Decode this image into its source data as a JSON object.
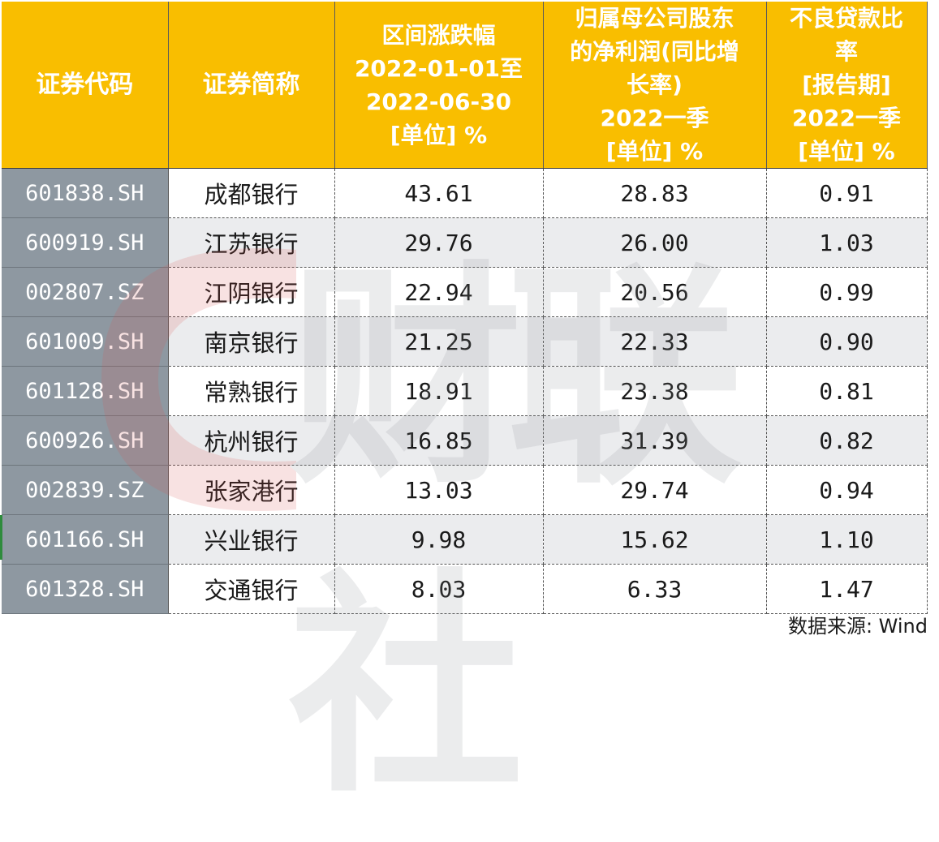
{
  "table": {
    "headers": [
      {
        "lines": [
          "证券代码"
        ]
      },
      {
        "lines": [
          "证券简称"
        ]
      },
      {
        "lines": [
          "区间涨跌幅",
          "2022-01-01至",
          "2022-06-30",
          "[单位] %"
        ]
      },
      {
        "lines": [
          "归属母公司股东",
          "的净利润(同比增",
          "长率)",
          "2022一季",
          "[单位] %"
        ]
      },
      {
        "lines": [
          "不良贷款比",
          "率",
          "[报告期]",
          "2022一季",
          "[单位] %"
        ]
      }
    ],
    "rows": [
      {
        "code": "601838.SH",
        "name": "成都银行",
        "change": "43.61",
        "profit_growth": "28.83",
        "npl": "0.91"
      },
      {
        "code": "600919.SH",
        "name": "江苏银行",
        "change": "29.76",
        "profit_growth": "26.00",
        "npl": "1.03"
      },
      {
        "code": "002807.SZ",
        "name": "江阴银行",
        "change": "22.94",
        "profit_growth": "20.56",
        "npl": "0.99"
      },
      {
        "code": "601009.SH",
        "name": "南京银行",
        "change": "21.25",
        "profit_growth": "22.33",
        "npl": "0.90"
      },
      {
        "code": "601128.SH",
        "name": "常熟银行",
        "change": "18.91",
        "profit_growth": "23.38",
        "npl": "0.81"
      },
      {
        "code": "600926.SH",
        "name": "杭州银行",
        "change": "16.85",
        "profit_growth": "31.39",
        "npl": "0.82"
      },
      {
        "code": "002839.SZ",
        "name": "张家港行",
        "change": "13.03",
        "profit_growth": "29.74",
        "npl": "0.94"
      },
      {
        "code": "601166.SH",
        "name": "兴业银行",
        "change": "9.98",
        "profit_growth": "15.62",
        "npl": "1.10"
      },
      {
        "code": "601328.SH",
        "name": "交通银行",
        "change": "8.03",
        "profit_growth": "6.33",
        "npl": "1.47"
      }
    ]
  },
  "source_note": "数据来源: Wind",
  "watermark": {
    "text": "财联社",
    "glyph_color": "#d9534f",
    "text_color": "#8b8e93"
  },
  "colors": {
    "header_bg": "#f9be00",
    "code_col_bg": "#8e98a1",
    "row_stripe": "#ebecee"
  }
}
